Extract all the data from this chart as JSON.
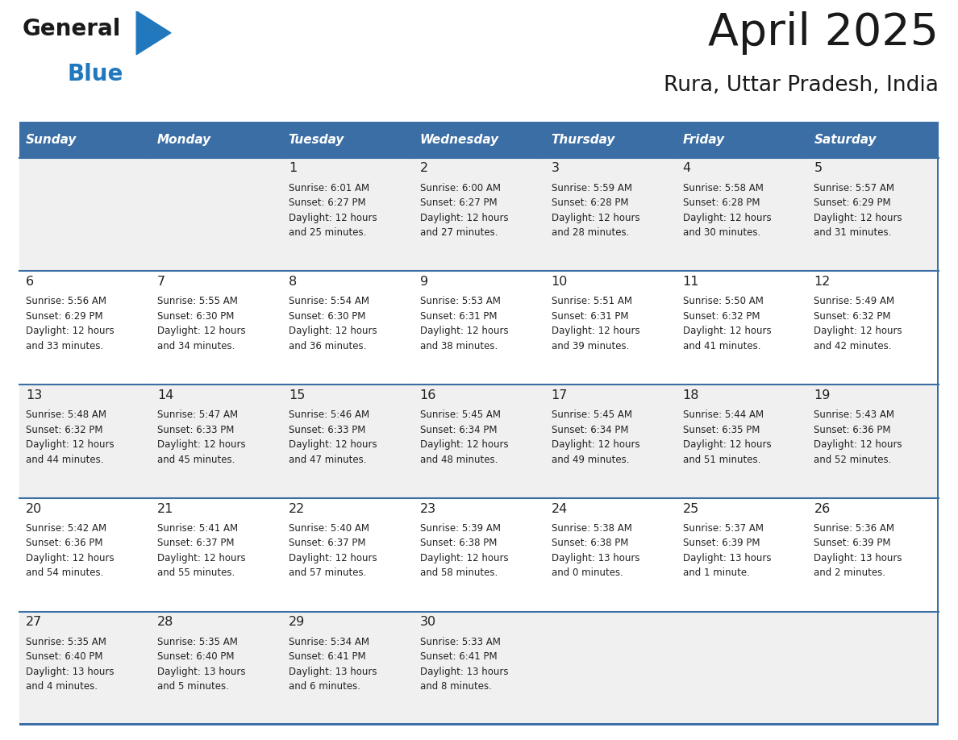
{
  "title": "April 2025",
  "subtitle": "Rura, Uttar Pradesh, India",
  "header_bg": "#3a6ea5",
  "header_text_color": "#ffffff",
  "cell_bg_odd": "#f0f0f0",
  "cell_bg_even": "#ffffff",
  "grid_line_color": "#3a6ea5",
  "day_headers": [
    "Sunday",
    "Monday",
    "Tuesday",
    "Wednesday",
    "Thursday",
    "Friday",
    "Saturday"
  ],
  "weeks": [
    [
      {
        "day": "",
        "info": ""
      },
      {
        "day": "",
        "info": ""
      },
      {
        "day": "1",
        "info": "Sunrise: 6:01 AM\nSunset: 6:27 PM\nDaylight: 12 hours\nand 25 minutes."
      },
      {
        "day": "2",
        "info": "Sunrise: 6:00 AM\nSunset: 6:27 PM\nDaylight: 12 hours\nand 27 minutes."
      },
      {
        "day": "3",
        "info": "Sunrise: 5:59 AM\nSunset: 6:28 PM\nDaylight: 12 hours\nand 28 minutes."
      },
      {
        "day": "4",
        "info": "Sunrise: 5:58 AM\nSunset: 6:28 PM\nDaylight: 12 hours\nand 30 minutes."
      },
      {
        "day": "5",
        "info": "Sunrise: 5:57 AM\nSunset: 6:29 PM\nDaylight: 12 hours\nand 31 minutes."
      }
    ],
    [
      {
        "day": "6",
        "info": "Sunrise: 5:56 AM\nSunset: 6:29 PM\nDaylight: 12 hours\nand 33 minutes."
      },
      {
        "day": "7",
        "info": "Sunrise: 5:55 AM\nSunset: 6:30 PM\nDaylight: 12 hours\nand 34 minutes."
      },
      {
        "day": "8",
        "info": "Sunrise: 5:54 AM\nSunset: 6:30 PM\nDaylight: 12 hours\nand 36 minutes."
      },
      {
        "day": "9",
        "info": "Sunrise: 5:53 AM\nSunset: 6:31 PM\nDaylight: 12 hours\nand 38 minutes."
      },
      {
        "day": "10",
        "info": "Sunrise: 5:51 AM\nSunset: 6:31 PM\nDaylight: 12 hours\nand 39 minutes."
      },
      {
        "day": "11",
        "info": "Sunrise: 5:50 AM\nSunset: 6:32 PM\nDaylight: 12 hours\nand 41 minutes."
      },
      {
        "day": "12",
        "info": "Sunrise: 5:49 AM\nSunset: 6:32 PM\nDaylight: 12 hours\nand 42 minutes."
      }
    ],
    [
      {
        "day": "13",
        "info": "Sunrise: 5:48 AM\nSunset: 6:32 PM\nDaylight: 12 hours\nand 44 minutes."
      },
      {
        "day": "14",
        "info": "Sunrise: 5:47 AM\nSunset: 6:33 PM\nDaylight: 12 hours\nand 45 minutes."
      },
      {
        "day": "15",
        "info": "Sunrise: 5:46 AM\nSunset: 6:33 PM\nDaylight: 12 hours\nand 47 minutes."
      },
      {
        "day": "16",
        "info": "Sunrise: 5:45 AM\nSunset: 6:34 PM\nDaylight: 12 hours\nand 48 minutes."
      },
      {
        "day": "17",
        "info": "Sunrise: 5:45 AM\nSunset: 6:34 PM\nDaylight: 12 hours\nand 49 minutes."
      },
      {
        "day": "18",
        "info": "Sunrise: 5:44 AM\nSunset: 6:35 PM\nDaylight: 12 hours\nand 51 minutes."
      },
      {
        "day": "19",
        "info": "Sunrise: 5:43 AM\nSunset: 6:36 PM\nDaylight: 12 hours\nand 52 minutes."
      }
    ],
    [
      {
        "day": "20",
        "info": "Sunrise: 5:42 AM\nSunset: 6:36 PM\nDaylight: 12 hours\nand 54 minutes."
      },
      {
        "day": "21",
        "info": "Sunrise: 5:41 AM\nSunset: 6:37 PM\nDaylight: 12 hours\nand 55 minutes."
      },
      {
        "day": "22",
        "info": "Sunrise: 5:40 AM\nSunset: 6:37 PM\nDaylight: 12 hours\nand 57 minutes."
      },
      {
        "day": "23",
        "info": "Sunrise: 5:39 AM\nSunset: 6:38 PM\nDaylight: 12 hours\nand 58 minutes."
      },
      {
        "day": "24",
        "info": "Sunrise: 5:38 AM\nSunset: 6:38 PM\nDaylight: 13 hours\nand 0 minutes."
      },
      {
        "day": "25",
        "info": "Sunrise: 5:37 AM\nSunset: 6:39 PM\nDaylight: 13 hours\nand 1 minute."
      },
      {
        "day": "26",
        "info": "Sunrise: 5:36 AM\nSunset: 6:39 PM\nDaylight: 13 hours\nand 2 minutes."
      }
    ],
    [
      {
        "day": "27",
        "info": "Sunrise: 5:35 AM\nSunset: 6:40 PM\nDaylight: 13 hours\nand 4 minutes."
      },
      {
        "day": "28",
        "info": "Sunrise: 5:35 AM\nSunset: 6:40 PM\nDaylight: 13 hours\nand 5 minutes."
      },
      {
        "day": "29",
        "info": "Sunrise: 5:34 AM\nSunset: 6:41 PM\nDaylight: 13 hours\nand 6 minutes."
      },
      {
        "day": "30",
        "info": "Sunrise: 5:33 AM\nSunset: 6:41 PM\nDaylight: 13 hours\nand 8 minutes."
      },
      {
        "day": "",
        "info": ""
      },
      {
        "day": "",
        "info": ""
      },
      {
        "day": "",
        "info": ""
      }
    ]
  ],
  "logo_text_general": "General",
  "logo_text_blue": "Blue",
  "logo_color_general": "#1a1a1a",
  "logo_color_blue": "#2178bc",
  "logo_triangle_color": "#2178bc",
  "fig_width": 11.88,
  "fig_height": 9.18
}
